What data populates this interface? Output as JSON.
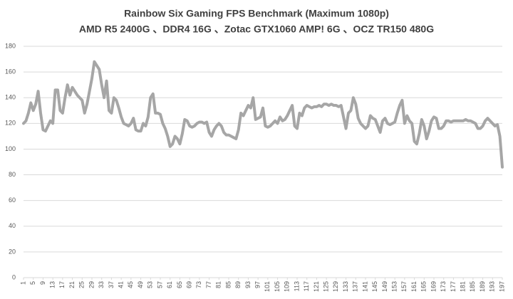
{
  "chart_data": {
    "type": "line",
    "title": "Rainbow Six Gaming FPS Benchmark (Maximum 1080p)",
    "subtitle": "AMD R5 2400G 、DDR4 16G 、Zotac GTX1060 AMP! 6G 、OCZ TR150 480G",
    "x": [
      1,
      2,
      3,
      4,
      5,
      6,
      7,
      8,
      9,
      10,
      11,
      12,
      13,
      14,
      15,
      16,
      17,
      18,
      19,
      20,
      21,
      22,
      23,
      24,
      25,
      26,
      27,
      28,
      29,
      30,
      31,
      32,
      33,
      34,
      35,
      36,
      37,
      38,
      39,
      40,
      41,
      42,
      43,
      44,
      45,
      46,
      47,
      48,
      49,
      50,
      51,
      52,
      53,
      54,
      55,
      56,
      57,
      58,
      59,
      60,
      61,
      62,
      63,
      64,
      65,
      66,
      67,
      68,
      69,
      70,
      71,
      72,
      73,
      74,
      75,
      76,
      77,
      78,
      79,
      80,
      81,
      82,
      83,
      84,
      85,
      86,
      87,
      88,
      89,
      90,
      91,
      92,
      93,
      94,
      95,
      96,
      97,
      98,
      99,
      100,
      101,
      102,
      103,
      104,
      105,
      106,
      107,
      108,
      109,
      110,
      111,
      112,
      113,
      114,
      115,
      116,
      117,
      118,
      119,
      120,
      121,
      122,
      123,
      124,
      125,
      126,
      127,
      128,
      129,
      130,
      131,
      132,
      133,
      134,
      135,
      136,
      137,
      138,
      139,
      140,
      141,
      142,
      143,
      144,
      145,
      146,
      147,
      148,
      149,
      150,
      151,
      152,
      153,
      154,
      155,
      156,
      157,
      158,
      159,
      160,
      161,
      162,
      163,
      164,
      165,
      166,
      167,
      168,
      169,
      170,
      171,
      172,
      173,
      174,
      175,
      176,
      177,
      178,
      179,
      180,
      181,
      182,
      183,
      184,
      185,
      186,
      187,
      188,
      189,
      190,
      191,
      192,
      193,
      194,
      195,
      196,
      197
    ],
    "series": [
      {
        "name": "FPS",
        "color": "#a6a6a6",
        "values": [
          120,
          122,
          128,
          136,
          130,
          135,
          145,
          128,
          115,
          114,
          118,
          122,
          120,
          146,
          146,
          130,
          128,
          140,
          150,
          142,
          148,
          145,
          142,
          140,
          138,
          128,
          135,
          145,
          155,
          168,
          165,
          162,
          150,
          140,
          153,
          130,
          128,
          140,
          138,
          132,
          125,
          120,
          119,
          118,
          120,
          124,
          115,
          114,
          114,
          120,
          118,
          125,
          140,
          143,
          128,
          128,
          127,
          120,
          116,
          110,
          102,
          104,
          110,
          108,
          104,
          112,
          123,
          122,
          118,
          117,
          118,
          120,
          121,
          121,
          120,
          121,
          113,
          110,
          115,
          118,
          120,
          118,
          113,
          111,
          111,
          110,
          109,
          108,
          115,
          128,
          126,
          130,
          134,
          132,
          140,
          123,
          124,
          125,
          132,
          118,
          117,
          118,
          120,
          122,
          120,
          125,
          122,
          123,
          126,
          130,
          134,
          118,
          116,
          128,
          126,
          132,
          134,
          133,
          132,
          133,
          133,
          134,
          133,
          135,
          135,
          134,
          135,
          134,
          134,
          133,
          134,
          125,
          116,
          128,
          130,
          140,
          135,
          124,
          120,
          118,
          116,
          118,
          126,
          124,
          123,
          118,
          113,
          122,
          124,
          120,
          119,
          120,
          121,
          128,
          134,
          138,
          120,
          126,
          122,
          120,
          106,
          104,
          112,
          123,
          118,
          108,
          114,
          122,
          125,
          124,
          116,
          116,
          118,
          122,
          122,
          121,
          122,
          122,
          122,
          122,
          122,
          123,
          122,
          122,
          121,
          120,
          116,
          116,
          118,
          122,
          124,
          122,
          120,
          118,
          119,
          110,
          86
        ]
      }
    ],
    "xlim": [
      1,
      197
    ],
    "xticks": [
      1,
      5,
      9,
      13,
      17,
      21,
      25,
      29,
      33,
      37,
      41,
      45,
      49,
      53,
      57,
      61,
      65,
      69,
      73,
      77,
      81,
      85,
      89,
      93,
      97,
      101,
      105,
      109,
      113,
      117,
      121,
      125,
      129,
      133,
      137,
      141,
      145,
      149,
      153,
      157,
      161,
      165,
      169,
      173,
      177,
      181,
      185,
      189,
      193,
      197
    ],
    "ylim": [
      0,
      180
    ],
    "yticks": [
      0,
      20,
      40,
      60,
      80,
      100,
      120,
      140,
      160,
      180
    ],
    "grid": true
  }
}
